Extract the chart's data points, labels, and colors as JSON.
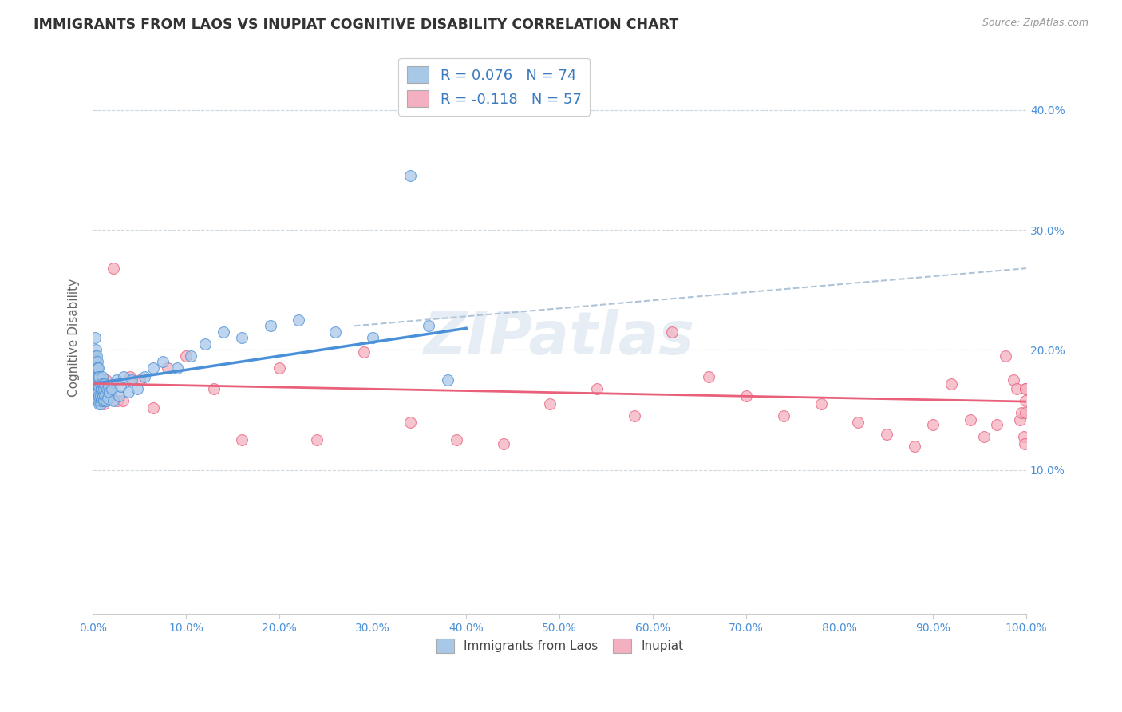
{
  "title": "IMMIGRANTS FROM LAOS VS INUPIAT COGNITIVE DISABILITY CORRELATION CHART",
  "source": "Source: ZipAtlas.com",
  "ylabel": "Cognitive Disability",
  "xlim": [
    0,
    1.0
  ],
  "ylim": [
    -0.02,
    0.44
  ],
  "color_blue": "#a8c8e8",
  "color_pink": "#f4b0c0",
  "line_blue": "#4a90d9",
  "line_pink": "#e8607a",
  "line_dashed": "#b0c4d8",
  "watermark": "ZIPatlas",
  "laos_x": [
    0.001,
    0.001,
    0.001,
    0.002,
    0.002,
    0.002,
    0.002,
    0.003,
    0.003,
    0.003,
    0.003,
    0.003,
    0.004,
    0.004,
    0.004,
    0.004,
    0.004,
    0.005,
    0.005,
    0.005,
    0.005,
    0.005,
    0.006,
    0.006,
    0.006,
    0.006,
    0.006,
    0.007,
    0.007,
    0.007,
    0.007,
    0.008,
    0.008,
    0.008,
    0.009,
    0.009,
    0.01,
    0.01,
    0.01,
    0.011,
    0.011,
    0.012,
    0.012,
    0.013,
    0.013,
    0.014,
    0.015,
    0.016,
    0.017,
    0.018,
    0.02,
    0.022,
    0.025,
    0.028,
    0.03,
    0.033,
    0.038,
    0.042,
    0.048,
    0.055,
    0.065,
    0.075,
    0.09,
    0.105,
    0.12,
    0.14,
    0.16,
    0.19,
    0.22,
    0.26,
    0.3,
    0.34,
    0.36,
    0.38
  ],
  "laos_y": [
    0.195,
    0.185,
    0.175,
    0.21,
    0.195,
    0.19,
    0.18,
    0.2,
    0.19,
    0.185,
    0.175,
    0.17,
    0.195,
    0.185,
    0.18,
    0.175,
    0.165,
    0.19,
    0.185,
    0.175,
    0.168,
    0.16,
    0.185,
    0.178,
    0.17,
    0.165,
    0.158,
    0.178,
    0.17,
    0.162,
    0.155,
    0.172,
    0.162,
    0.155,
    0.168,
    0.158,
    0.178,
    0.168,
    0.16,
    0.172,
    0.162,
    0.168,
    0.158,
    0.172,
    0.162,
    0.158,
    0.168,
    0.16,
    0.17,
    0.165,
    0.168,
    0.158,
    0.175,
    0.162,
    0.17,
    0.178,
    0.165,
    0.175,
    0.168,
    0.178,
    0.185,
    0.19,
    0.185,
    0.195,
    0.205,
    0.215,
    0.21,
    0.22,
    0.225,
    0.215,
    0.21,
    0.345,
    0.22,
    0.175
  ],
  "inupiat_x": [
    0.001,
    0.002,
    0.003,
    0.004,
    0.005,
    0.006,
    0.007,
    0.008,
    0.009,
    0.01,
    0.012,
    0.014,
    0.016,
    0.019,
    0.022,
    0.026,
    0.032,
    0.04,
    0.05,
    0.065,
    0.08,
    0.1,
    0.13,
    0.16,
    0.2,
    0.24,
    0.29,
    0.34,
    0.39,
    0.44,
    0.49,
    0.54,
    0.58,
    0.62,
    0.66,
    0.7,
    0.74,
    0.78,
    0.82,
    0.85,
    0.88,
    0.9,
    0.92,
    0.94,
    0.955,
    0.968,
    0.978,
    0.986,
    0.99,
    0.993,
    0.995,
    0.997,
    0.998,
    0.999,
    0.999,
    0.999,
    0.999
  ],
  "inupiat_y": [
    0.175,
    0.185,
    0.165,
    0.175,
    0.165,
    0.17,
    0.158,
    0.168,
    0.158,
    0.175,
    0.155,
    0.175,
    0.168,
    0.162,
    0.268,
    0.158,
    0.158,
    0.178,
    0.175,
    0.152,
    0.185,
    0.195,
    0.168,
    0.125,
    0.185,
    0.125,
    0.198,
    0.14,
    0.125,
    0.122,
    0.155,
    0.168,
    0.145,
    0.215,
    0.178,
    0.162,
    0.145,
    0.155,
    0.14,
    0.13,
    0.12,
    0.138,
    0.172,
    0.142,
    0.128,
    0.138,
    0.195,
    0.175,
    0.168,
    0.142,
    0.148,
    0.128,
    0.122,
    0.168,
    0.148,
    0.158,
    0.168
  ],
  "blue_line_x": [
    0.001,
    0.4
  ],
  "blue_line_y": [
    0.172,
    0.218
  ],
  "pink_line_x": [
    0.001,
    1.0
  ],
  "pink_line_y": [
    0.172,
    0.157
  ],
  "dashed_line_x": [
    0.28,
    1.0
  ],
  "dashed_line_y": [
    0.22,
    0.268
  ]
}
